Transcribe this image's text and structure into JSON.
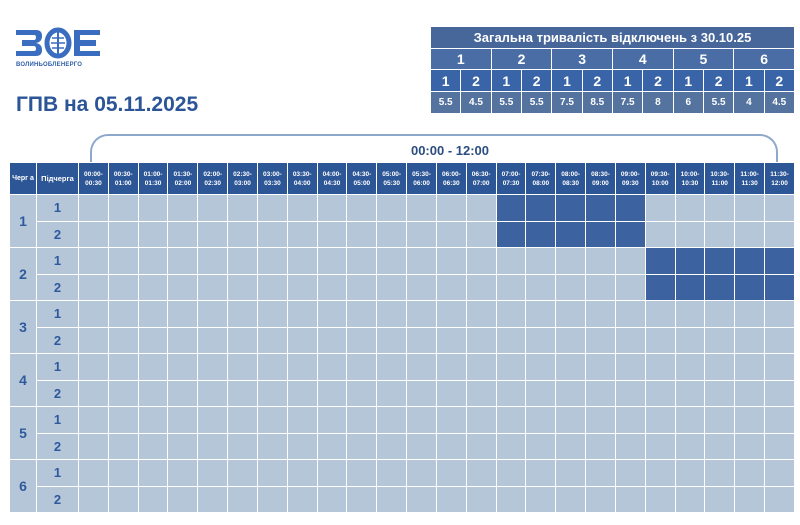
{
  "logo": {
    "icon": "zoe-logo-icon",
    "company_name": "ВОЛИНЬОБЛЕНЕРГО",
    "letters": "ЗОЕ"
  },
  "title": "ГПВ на 05.11.2025",
  "summary": {
    "heading": "Загальна тривалість відключень з 30.10.25",
    "groups": [
      {
        "queue": "1",
        "subs": [
          "1",
          "2"
        ],
        "values": [
          "5.5",
          "4.5"
        ]
      },
      {
        "queue": "2",
        "subs": [
          "1",
          "2"
        ],
        "values": [
          "5.5",
          "5.5"
        ]
      },
      {
        "queue": "3",
        "subs": [
          "1",
          "2"
        ],
        "values": [
          "7.5",
          "8.5"
        ]
      },
      {
        "queue": "4",
        "subs": [
          "1",
          "2"
        ],
        "values": [
          "7.5",
          "8"
        ]
      },
      {
        "queue": "5",
        "subs": [
          "1",
          "2"
        ],
        "values": [
          "6",
          "5.5"
        ]
      },
      {
        "queue": "6",
        "subs": [
          "1",
          "2"
        ],
        "values": [
          "4",
          "4.5"
        ]
      }
    ]
  },
  "schedule": {
    "range_label": "00:00 - 12:00",
    "col_queue": "Черг а",
    "col_sub": "Підчерга",
    "slots": [
      [
        "00:00-",
        "00:30"
      ],
      [
        "00:30-",
        "01:00"
      ],
      [
        "01:00-",
        "01:30"
      ],
      [
        "01:30-",
        "02:00"
      ],
      [
        "02:00-",
        "02:30"
      ],
      [
        "02:30-",
        "03:00"
      ],
      [
        "03:00-",
        "03:30"
      ],
      [
        "03:30-",
        "04:00"
      ],
      [
        "04:00-",
        "04:30"
      ],
      [
        "04:30-",
        "05:00"
      ],
      [
        "05:00-",
        "05:30"
      ],
      [
        "05:30-",
        "06:00"
      ],
      [
        "06:00-",
        "06:30"
      ],
      [
        "06:30-",
        "07:00"
      ],
      [
        "07:00-",
        "07:30"
      ],
      [
        "07:30-",
        "08:00"
      ],
      [
        "08:00-",
        "08:30"
      ],
      [
        "08:30-",
        "09:00"
      ],
      [
        "09:00-",
        "09:30"
      ],
      [
        "09:30-",
        "10:00"
      ],
      [
        "10:00-",
        "10:30"
      ],
      [
        "10:30-",
        "11:00"
      ],
      [
        "11:00-",
        "11:30"
      ],
      [
        "11:30-",
        "12:00"
      ]
    ],
    "queues": [
      {
        "queue": "1",
        "subqueues": [
          {
            "sub": "1",
            "off_slots": [
              14,
              15,
              16,
              17,
              18
            ]
          },
          {
            "sub": "2",
            "off_slots": [
              14,
              15,
              16,
              17,
              18
            ]
          }
        ]
      },
      {
        "queue": "2",
        "subqueues": [
          {
            "sub": "1",
            "off_slots": [
              19,
              20,
              21,
              22,
              23
            ]
          },
          {
            "sub": "2",
            "off_slots": [
              19,
              20,
              21,
              22,
              23
            ]
          }
        ]
      },
      {
        "queue": "3",
        "subqueues": [
          {
            "sub": "1",
            "off_slots": []
          },
          {
            "sub": "2",
            "off_slots": []
          }
        ]
      },
      {
        "queue": "4",
        "subqueues": [
          {
            "sub": "1",
            "off_slots": []
          },
          {
            "sub": "2",
            "off_slots": []
          }
        ]
      },
      {
        "queue": "5",
        "subqueues": [
          {
            "sub": "1",
            "off_slots": []
          },
          {
            "sub": "2",
            "off_slots": []
          }
        ]
      },
      {
        "queue": "6",
        "subqueues": [
          {
            "sub": "1",
            "off_slots": []
          },
          {
            "sub": "2",
            "off_slots": []
          }
        ]
      }
    ]
  },
  "colors": {
    "outage": "#3d62a0",
    "power_on": "#b6c6d9",
    "header": "#2d5696"
  }
}
